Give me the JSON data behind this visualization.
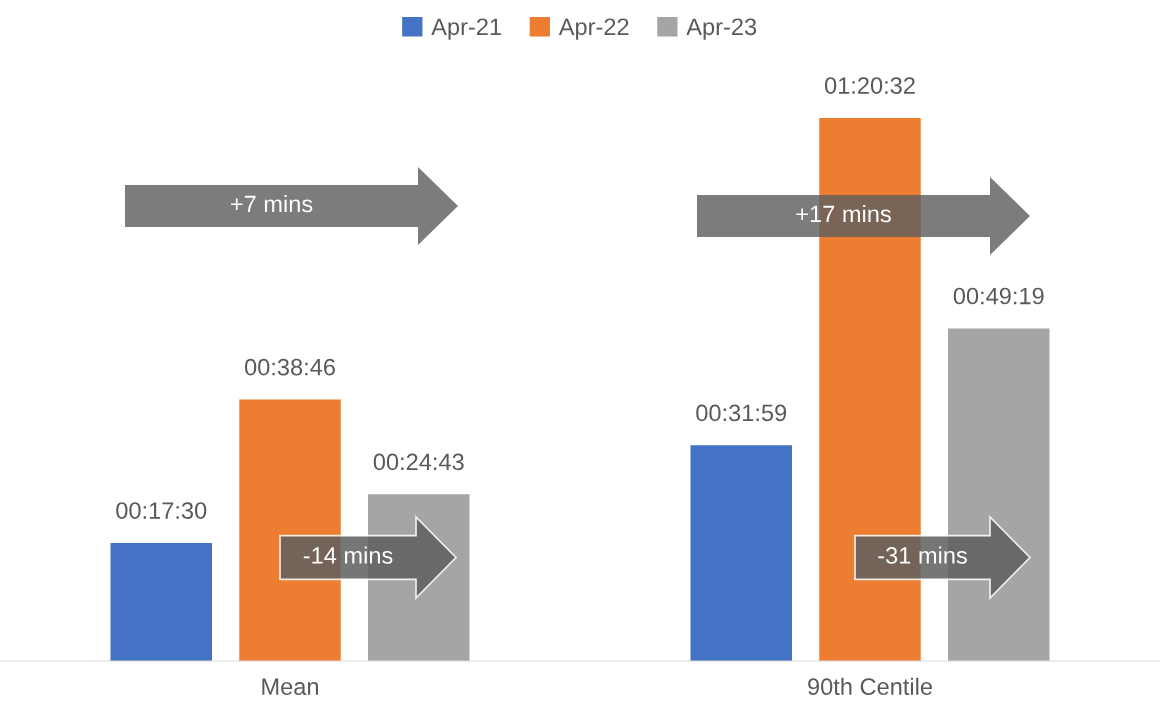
{
  "chart_data": {
    "type": "bar",
    "categories": [
      "Mean",
      "90th Centile"
    ],
    "series": [
      {
        "name": "Apr-21",
        "color": "#4472c4",
        "values": [
          1050,
          1919
        ],
        "value_labels": [
          "00:17:30",
          "00:31:59"
        ]
      },
      {
        "name": "Apr-22",
        "color": "#ed7d31",
        "values": [
          2326,
          4832
        ],
        "value_labels": [
          "00:38:46",
          "01:20:32"
        ]
      },
      {
        "name": "Apr-23",
        "color": "#a5a5a5",
        "values": [
          1483,
          2959
        ],
        "value_labels": [
          "00:24:43",
          "00:49:19"
        ]
      }
    ],
    "annotations": [
      "+7 mins",
      "-14 mins",
      "+17 mins",
      "-31 mins"
    ],
    "legend": "top",
    "grid": false,
    "tick_labels": "x"
  }
}
